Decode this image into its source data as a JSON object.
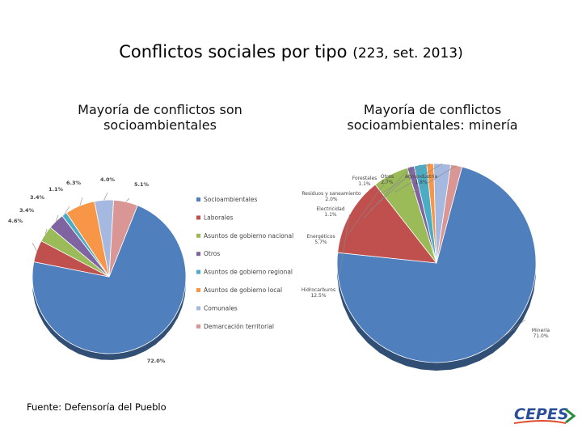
{
  "title": {
    "main": "Conflictos sociales por tipo",
    "sub": "(223, set. 2013)"
  },
  "source": "Fuente: Defensoría del Pueblo",
  "logo": {
    "text": "CEPES"
  },
  "colors": {
    "blue": "#4f7fbd",
    "red": "#c0504d",
    "green": "#9bbb59",
    "purple": "#8064a2",
    "teal": "#4bacc6",
    "orange": "#f79646",
    "lightblue": "#a5b9e0",
    "pink": "#d99694"
  },
  "chart_data": [
    {
      "type": "pie",
      "title": "Mayoría de conflictos son socioambientales",
      "legend_position": "right",
      "slices": [
        {
          "name": "Socioambientales",
          "value": 72.0,
          "label": "72.0%",
          "color": "#4f7fbd"
        },
        {
          "name": "Laborales",
          "value": 4.6,
          "label": "4.6%",
          "color": "#c0504d"
        },
        {
          "name": "Asuntos de gobierno nacional",
          "value": 3.4,
          "label": "3.4%",
          "color": "#9bbb59"
        },
        {
          "name": "Otros",
          "value": 3.4,
          "label": "3.4%",
          "color": "#8064a2"
        },
        {
          "name": "Asuntos de gobierno regional",
          "value": 1.1,
          "label": "1.1%",
          "color": "#4bacc6"
        },
        {
          "name": "Asuntos de gobierno local",
          "value": 6.3,
          "label": "6.3%",
          "color": "#f79646"
        },
        {
          "name": "Comunales",
          "value": 4.0,
          "label": "4.0%",
          "color": "#a5b9e0"
        },
        {
          "name": "Demarcación territorial",
          "value": 5.1,
          "label": "5.1%",
          "color": "#d99694"
        }
      ]
    },
    {
      "type": "pie",
      "title": "Mayoría de conflictos socioambientales: minería",
      "slices": [
        {
          "name": "Minería",
          "value": 71.0,
          "label": "71.0%",
          "color": "#4f7fbd"
        },
        {
          "name": "Hidrocarburos",
          "value": 12.5,
          "label": "12.5%",
          "color": "#c0504d"
        },
        {
          "name": "Energéticos",
          "value": 5.7,
          "label": "5.7%",
          "color": "#9bbb59"
        },
        {
          "name": "Electricidad",
          "value": 1.1,
          "label": "1.1%",
          "color": "#8064a2"
        },
        {
          "name": "Residuos y saneamiento",
          "value": 2.0,
          "label": "2.0%",
          "color": "#4bacc6"
        },
        {
          "name": "Forestales",
          "value": 1.1,
          "label": "1.1%",
          "color": "#f79646"
        },
        {
          "name": "Otros",
          "value": 2.7,
          "label": "2.7%",
          "color": "#a5b9e0"
        },
        {
          "name": "Agroindustria",
          "value": 1.8,
          "label": "1.8%",
          "color": "#d99694"
        }
      ]
    }
  ]
}
